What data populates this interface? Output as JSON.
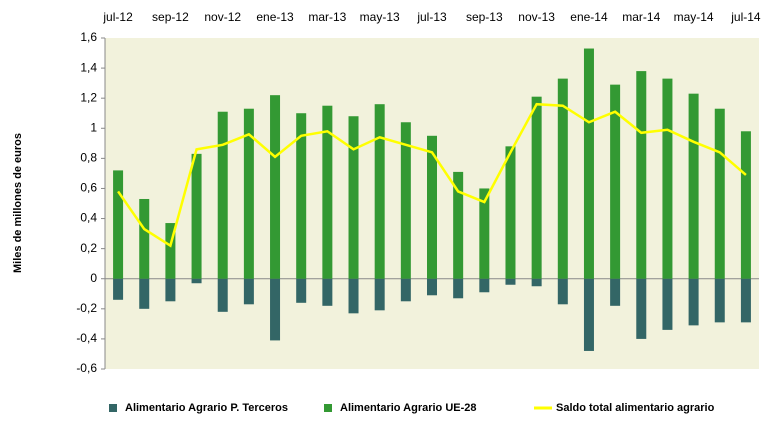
{
  "chart_data": {
    "type": "bar_line",
    "y_label": "Miles de millones de euros",
    "categories": [
      "jul-12",
      null,
      "sep-12",
      null,
      "nov-12",
      null,
      "ene-13",
      null,
      "mar-13",
      null,
      "may-13",
      null,
      "jul-13",
      null,
      "sep-13",
      null,
      "nov-13",
      null,
      "ene-14",
      null,
      "mar-14",
      null,
      "may-14",
      null,
      "jul-14"
    ],
    "series": [
      {
        "name": "Alimentario Agrario P. Terceros",
        "color": "#336666",
        "kind": "bar",
        "values": [
          -0.14,
          -0.2,
          -0.15,
          -0.03,
          -0.22,
          -0.17,
          -0.41,
          -0.16,
          -0.18,
          -0.23,
          -0.21,
          -0.15,
          -0.11,
          -0.13,
          -0.09,
          -0.04,
          -0.05,
          -0.17,
          -0.48,
          -0.18,
          -0.4,
          -0.34,
          -0.31,
          -0.29,
          -0.29
        ]
      },
      {
        "name": "Alimentario Agrario UE-28",
        "color": "#339933",
        "kind": "bar",
        "values": [
          0.72,
          0.53,
          0.37,
          0.83,
          1.11,
          1.13,
          1.22,
          1.1,
          1.15,
          1.08,
          1.16,
          1.04,
          0.95,
          0.71,
          0.6,
          0.88,
          1.21,
          1.33,
          1.53,
          1.29,
          1.38,
          1.33,
          1.23,
          1.13,
          0.98
        ]
      },
      {
        "name": "Saldo total alimentario agrario",
        "color": "#ffff00",
        "kind": "line",
        "values": [
          0.58,
          0.33,
          0.22,
          0.86,
          0.89,
          0.96,
          0.81,
          0.95,
          0.98,
          0.86,
          0.94,
          0.89,
          0.84,
          0.58,
          0.51,
          0.84,
          1.16,
          1.15,
          1.04,
          1.11,
          0.97,
          0.99,
          0.91,
          0.84,
          0.69
        ]
      }
    ],
    "ylim": [
      -0.6,
      1.6
    ],
    "yticks": [
      {
        "value": 1.6,
        "label": "1,6"
      },
      {
        "value": 1.4,
        "label": "1,4"
      },
      {
        "value": 1.2,
        "label": "1,2"
      },
      1,
      {
        "value": 0.8,
        "label": "0,8"
      },
      {
        "value": 0.6,
        "label": "0,6"
      },
      {
        "value": 0.4,
        "label": "0,4"
      },
      {
        "value": 0.2,
        "label": "0,2"
      },
      0,
      {
        "value": -0.2,
        "label": "-0,2"
      },
      {
        "value": -0.4,
        "label": "-0,4"
      },
      {
        "value": -0.6,
        "label": "-0,6"
      }
    ],
    "grid": false,
    "legend": "bottom"
  }
}
